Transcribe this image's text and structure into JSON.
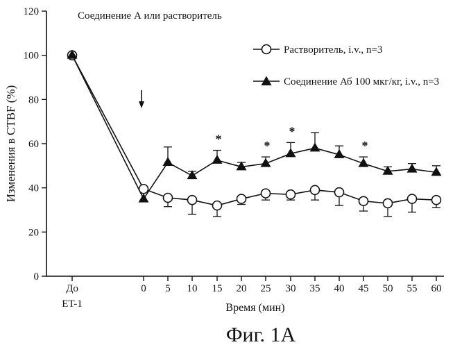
{
  "chart_data": {
    "type": "line",
    "figure_caption": "Фиг. 1А",
    "annotation": "Соединение А или растворитель",
    "xlabel": "Время (мин)",
    "ylabel": "Изменения  в СТВF (%)",
    "ylim": [
      0,
      120
    ],
    "yticks": [
      0,
      20,
      40,
      60,
      80,
      100,
      120
    ],
    "categories": [
      "До ET-1",
      "0",
      "5",
      "10",
      "15",
      "20",
      "25",
      "30",
      "35",
      "40",
      "45",
      "50",
      "55",
      "60"
    ],
    "x_tick_labels": [
      {
        "line1": "До",
        "line2": "ET-1"
      },
      {
        "line1": "0",
        "line2": ""
      },
      {
        "line1": "5",
        "line2": ""
      },
      {
        "line1": "10",
        "line2": ""
      },
      {
        "line1": "15",
        "line2": ""
      },
      {
        "line1": "20",
        "line2": ""
      },
      {
        "line1": "25",
        "line2": ""
      },
      {
        "line1": "30",
        "line2": ""
      },
      {
        "line1": "35",
        "line2": ""
      },
      {
        "line1": "40",
        "line2": ""
      },
      {
        "line1": "45",
        "line2": ""
      },
      {
        "line1": "50",
        "line2": ""
      },
      {
        "line1": "55",
        "line2": ""
      },
      {
        "line1": "60",
        "line2": ""
      }
    ],
    "legend_position": "top-right",
    "dose_arrow_at": "0",
    "series": [
      {
        "name": "Растворитель, i.v., n=3",
        "marker": "open-circle",
        "values": [
          100,
          39.5,
          35.5,
          34.5,
          32,
          35,
          37.5,
          37,
          39,
          38,
          34,
          33,
          35,
          34.5
        ],
        "errors": [
          0,
          0,
          4,
          6.5,
          5,
          2.5,
          3,
          2.5,
          4.5,
          6,
          4.5,
          6,
          6,
          3.5
        ]
      },
      {
        "name": "Соединение Аб 100 мкг/кг, i.v., n=3",
        "marker": "filled-triangle",
        "values": [
          100,
          35,
          51.5,
          45.5,
          52.5,
          49.5,
          51,
          55.5,
          58,
          55,
          51,
          47.5,
          48.5,
          47
        ],
        "errors": [
          0,
          0,
          7,
          2,
          4.5,
          2,
          3,
          5,
          7,
          4,
          3,
          2,
          2.5,
          3
        ]
      }
    ],
    "significance_markers": [
      {
        "x": "15",
        "label": "*"
      },
      {
        "x": "25",
        "label": "*"
      },
      {
        "x": "30",
        "label": "*"
      },
      {
        "x": "45",
        "label": "*"
      }
    ]
  }
}
